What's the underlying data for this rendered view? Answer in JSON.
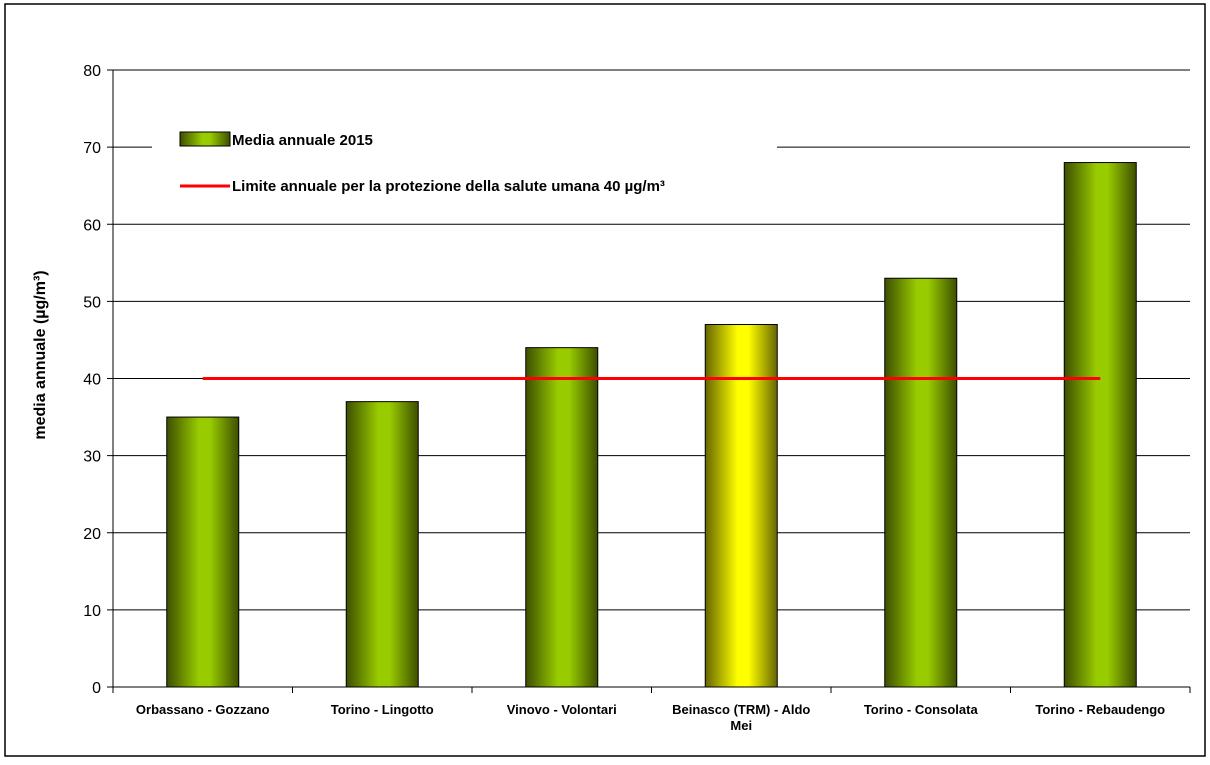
{
  "chart_data": {
    "type": "bar",
    "categories": [
      "Orbassano - Gozzano",
      "Torino - Lingotto",
      "Vinovo - Volontari",
      "Beinasco (TRM) - Aldo Mei",
      "Torino - Consolata",
      "Torino - Rebaudengo"
    ],
    "series": [
      {
        "name": "Media annuale 2015",
        "values": [
          35,
          37,
          44,
          47,
          53,
          68
        ],
        "highlight_index": 3
      }
    ],
    "reference_line": {
      "name": "Limite annuale per la protezione della salute umana 40 µg/m³",
      "value": 40
    },
    "title": "",
    "xlabel": "",
    "ylabel": "media annuale (µg/m³)",
    "ylim": [
      0,
      80
    ],
    "yticks": [
      0,
      10,
      20,
      30,
      40,
      50,
      60,
      70,
      80
    ],
    "grid": true,
    "legend_position": "top-left",
    "colors": {
      "bar_main": "#99cc00",
      "bar_dark": "#3d4f00",
      "bar_highlight": "#ffff00",
      "bar_highlight_dark": "#666600",
      "reference_line": "#ff0000",
      "grid": "#000000"
    }
  }
}
